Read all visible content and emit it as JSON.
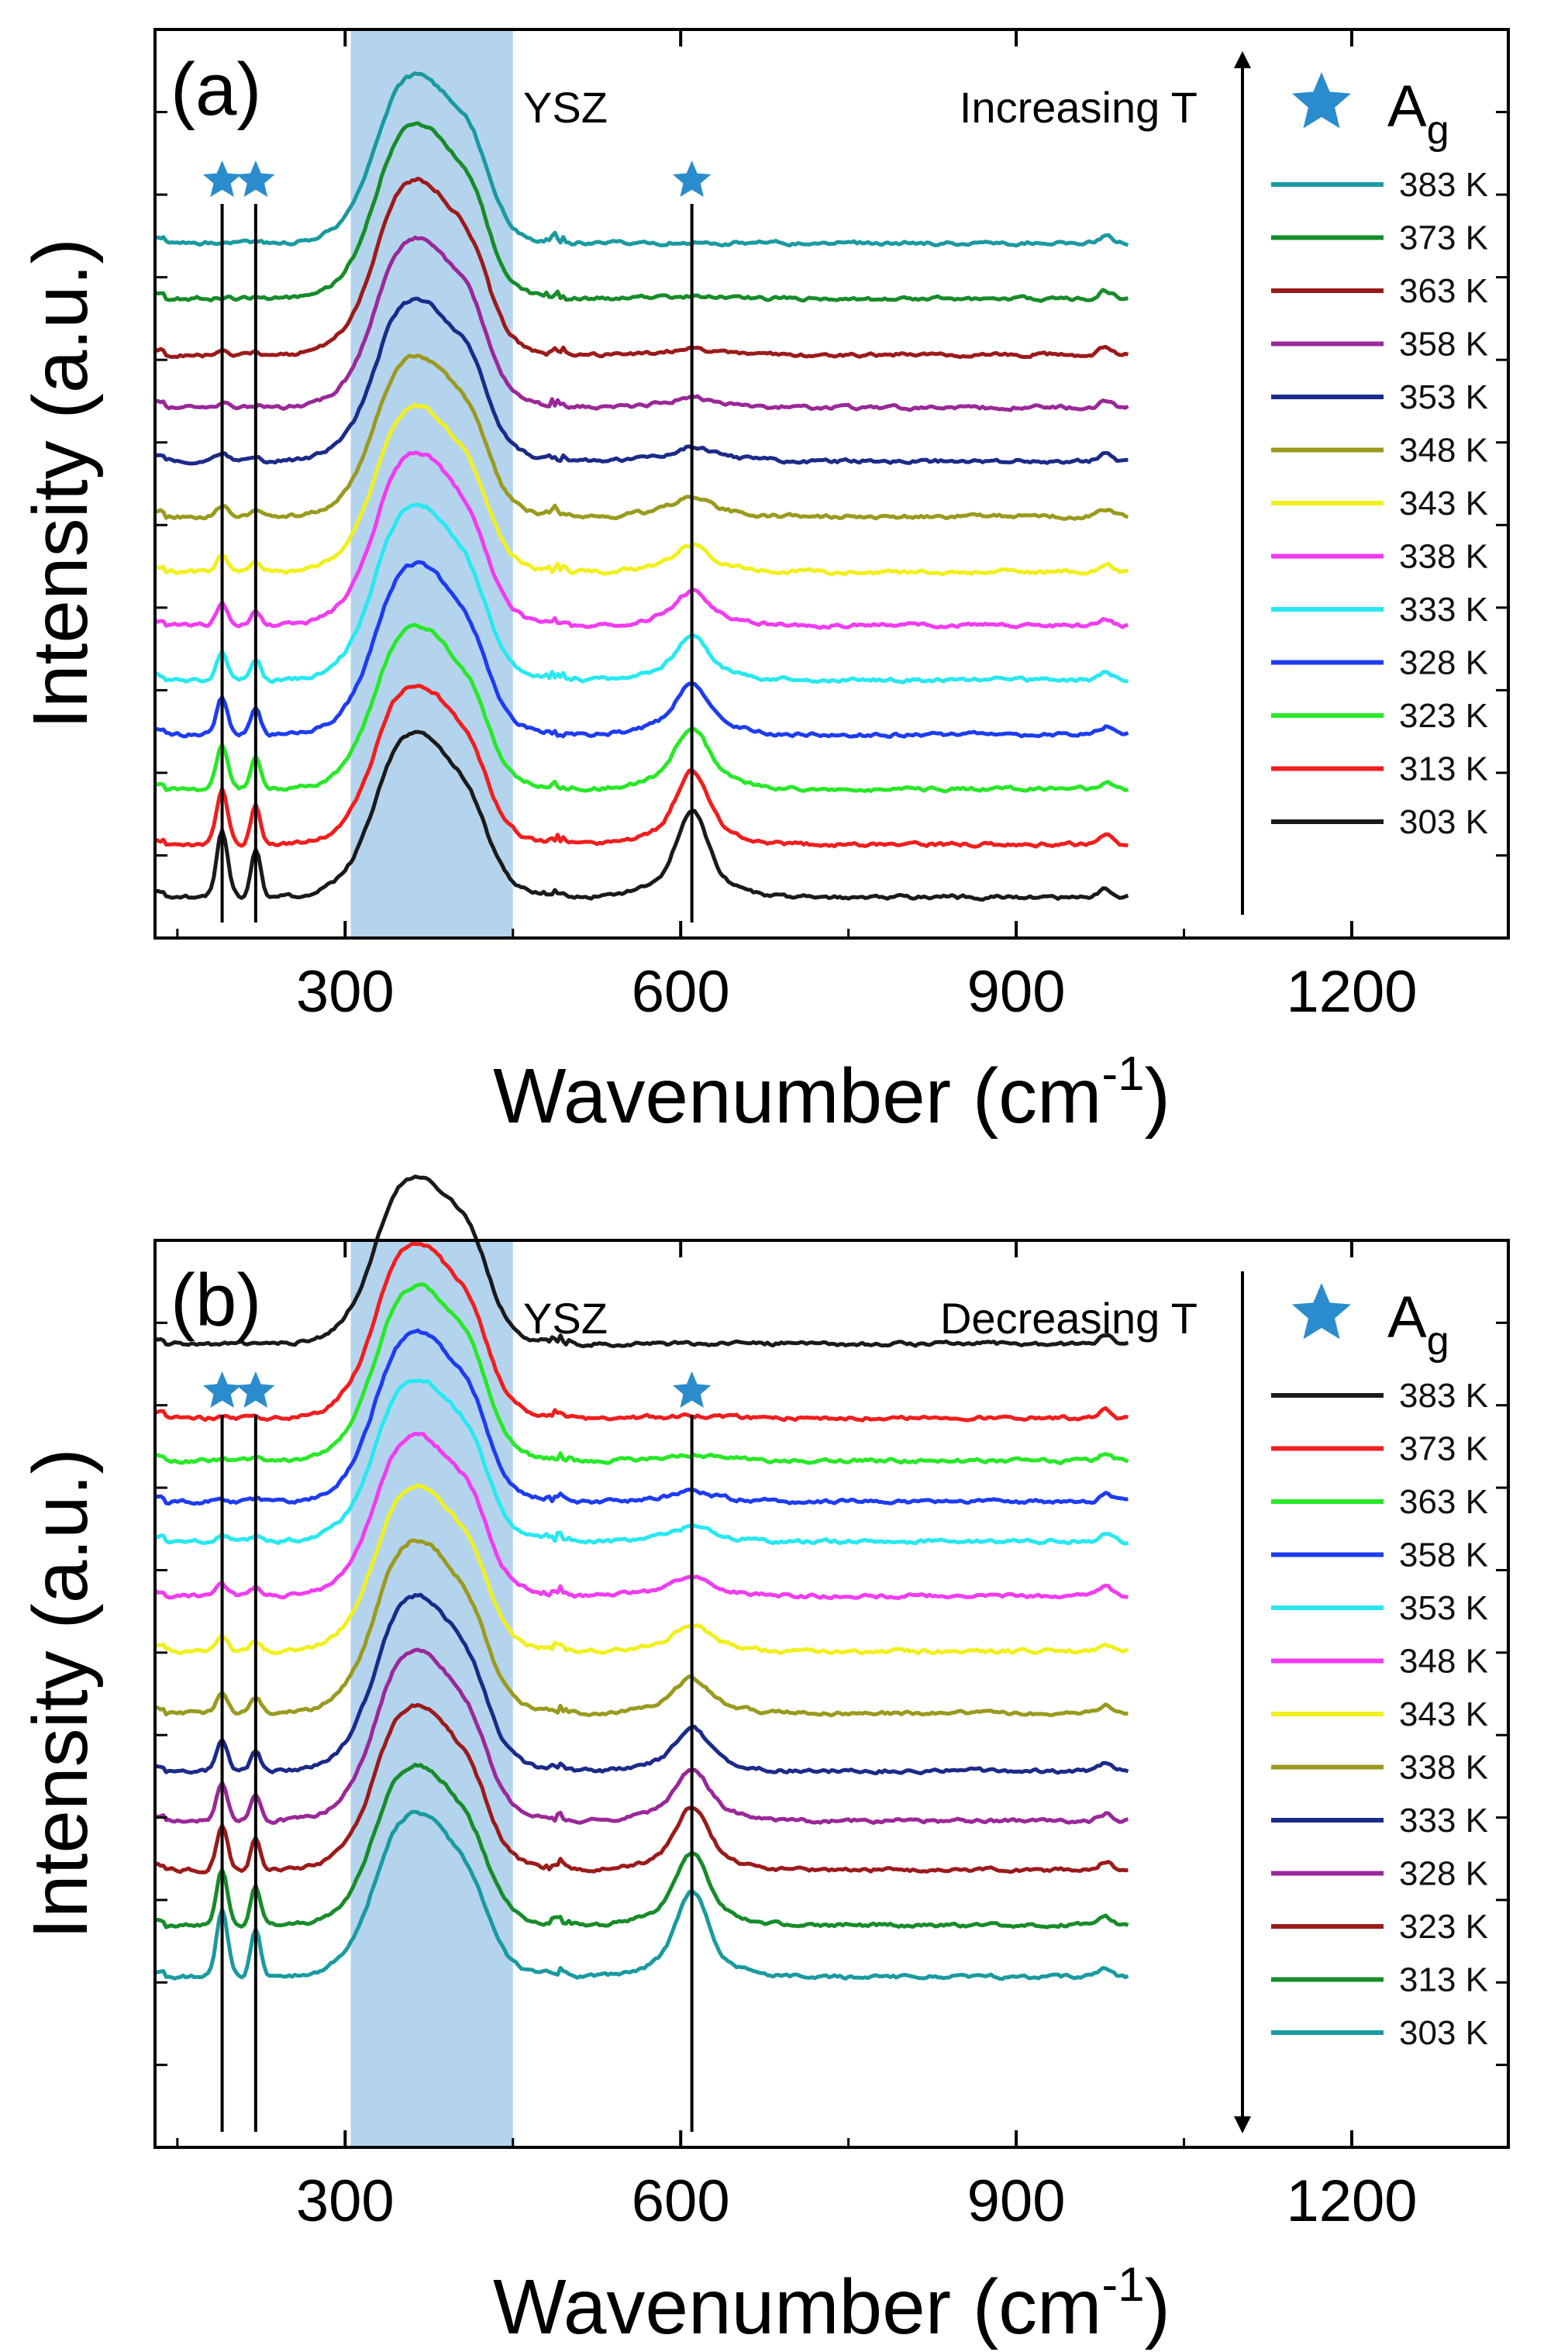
{
  "chart_data": [
    {
      "type": "line",
      "panel_label": "(a)",
      "direction_label": "Increasing T",
      "band_label": "YSZ",
      "marker_label": "A",
      "marker_subscript": "g",
      "xlabel": "Wavenumber (cm",
      "xlabel_sup": "-1",
      "xlabel_close": ")",
      "ylabel": "Intensity (a.u.)",
      "xlim": [
        130,
        1340
      ],
      "data_xrange": [
        130,
        1000
      ],
      "xticks": [
        300,
        600,
        900,
        1200
      ],
      "xtick_labels": [
        "300",
        "600",
        "900",
        "1200"
      ],
      "ysz_band": [
        305,
        450
      ],
      "ag_modes": [
        190,
        220,
        610
      ],
      "series": [
        {
          "name": "383 K",
          "color": "#1a9aa0"
        },
        {
          "name": "373 K",
          "color": "#178c2a"
        },
        {
          "name": "363 K",
          "color": "#9c1a1a"
        },
        {
          "name": "358 K",
          "color": "#9a2898"
        },
        {
          "name": "353 K",
          "color": "#1c2a8a"
        },
        {
          "name": "348 K",
          "color": "#9a9a1e"
        },
        {
          "name": "343 K",
          "color": "#f0f020"
        },
        {
          "name": "338 K",
          "color": "#f03cf0"
        },
        {
          "name": "333 K",
          "color": "#28e8f0"
        },
        {
          "name": "328 K",
          "color": "#1e3cf0"
        },
        {
          "name": "323 K",
          "color": "#28e828"
        },
        {
          "name": "313 K",
          "color": "#f01e1e"
        },
        {
          "name": "303 K",
          "color": "#1a1a1a"
        }
      ]
    },
    {
      "type": "line",
      "panel_label": "(b)",
      "direction_label": "Decreasing T",
      "band_label": "YSZ",
      "marker_label": "A",
      "marker_subscript": "g",
      "xlabel": "Wavenumber (cm",
      "xlabel_sup": "-1",
      "xlabel_close": ")",
      "ylabel": "Intensity (a.u.)",
      "xlim": [
        130,
        1340
      ],
      "data_xrange": [
        130,
        1000
      ],
      "xticks": [
        300,
        600,
        900,
        1200
      ],
      "xtick_labels": [
        "300",
        "600",
        "900",
        "1200"
      ],
      "ysz_band": [
        305,
        450
      ],
      "ag_modes": [
        190,
        220,
        610
      ],
      "series": [
        {
          "name": "383 K",
          "color": "#1a1a1a"
        },
        {
          "name": "373 K",
          "color": "#f01e1e"
        },
        {
          "name": "363 K",
          "color": "#28e828"
        },
        {
          "name": "358 K",
          "color": "#1e3cf0"
        },
        {
          "name": "353 K",
          "color": "#28e8f0"
        },
        {
          "name": "348 K",
          "color": "#f03cf0"
        },
        {
          "name": "343 K",
          "color": "#f0f020"
        },
        {
          "name": "338 K",
          "color": "#9a9a1e"
        },
        {
          "name": "333 K",
          "color": "#1c2a8a"
        },
        {
          "name": "328 K",
          "color": "#9a2898"
        },
        {
          "name": "323 K",
          "color": "#9c1a1a"
        },
        {
          "name": "313 K",
          "color": "#178c2a"
        },
        {
          "name": "303 K",
          "color": "#1a9aa0"
        }
      ]
    }
  ]
}
